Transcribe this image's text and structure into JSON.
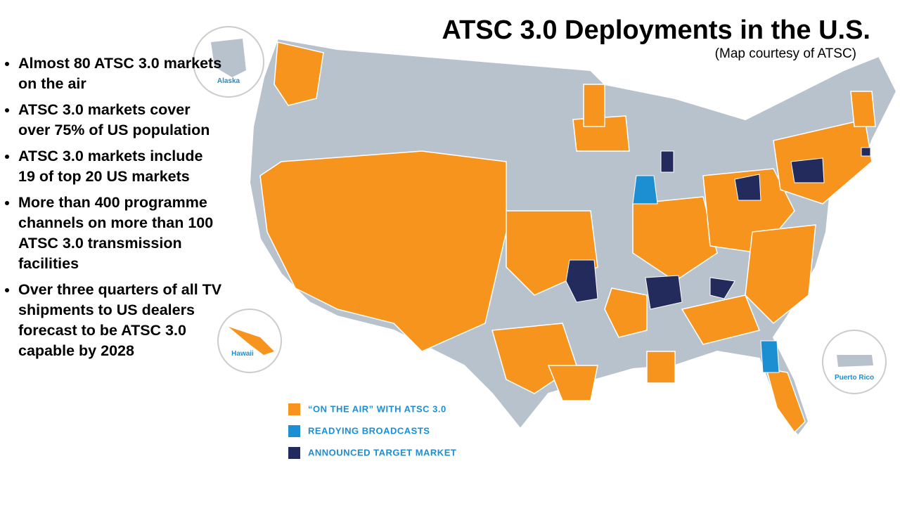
{
  "header": {
    "title": "ATSC 3.0 Deployments in the U.S.",
    "subtitle": "(Map courtesy of ATSC)"
  },
  "bullets": [
    "Almost 80 ATSC 3.0 markets on the air",
    "ATSC 3.0 markets cover over 75% of US population",
    "ATSC 3.0 markets include 19 of top 20 US markets",
    "More than 400 programme channels on more than 100 ATSC 3.0 transmission facilities",
    "Over three quarters of all TV shipments to US dealers forecast to be ATSC 3.0 capable by 2028"
  ],
  "map": {
    "insets": [
      "Alaska",
      "Hawaii",
      "Puerto Rico"
    ],
    "legend": [
      {
        "label": "“ON THE AIR” WITH ATSC 3.0",
        "color": "#f7941d"
      },
      {
        "label": "READYING BROADCASTS",
        "color": "#1b8fd2"
      },
      {
        "label": "ANNOUNCED TARGET MARKET",
        "color": "#232a5c"
      }
    ]
  }
}
